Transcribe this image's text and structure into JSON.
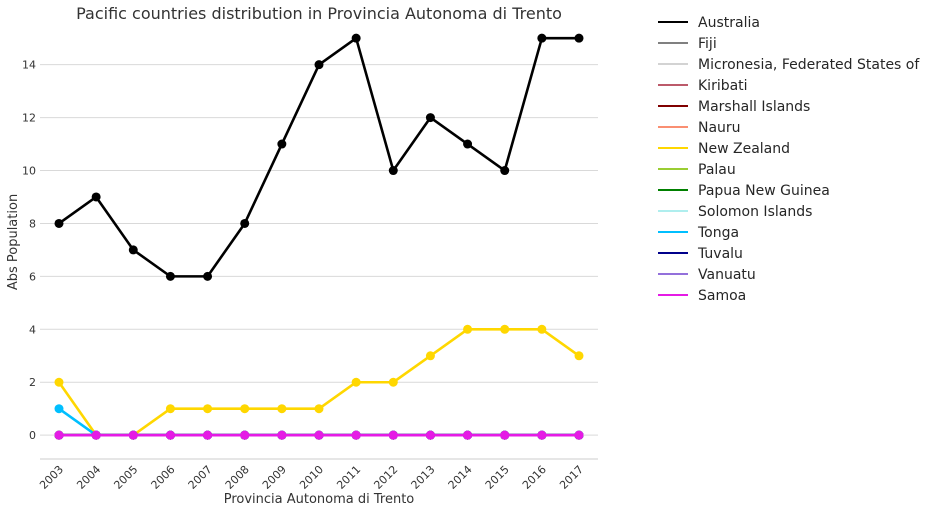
{
  "chart_data": {
    "type": "line",
    "title": "Pacific countries distribution in Provincia Autonoma di Trento",
    "xlabel": "Provincia Autonoma di Trento",
    "ylabel": "Abs Population",
    "categories": [
      "2003",
      "2004",
      "2005",
      "2006",
      "2007",
      "2008",
      "2009",
      "2010",
      "2011",
      "2012",
      "2013",
      "2014",
      "2015",
      "2016",
      "2017"
    ],
    "ylim": [
      -0.9,
      15.8
    ],
    "yticks": [
      0,
      2,
      4,
      6,
      8,
      10,
      12,
      14
    ],
    "grid": "horizontal",
    "legend_position": "outside-right",
    "series": [
      {
        "name": "Australia",
        "color": "#000000",
        "values": [
          8,
          9,
          7,
          6,
          6,
          8,
          11,
          14,
          15,
          10,
          12,
          11,
          10,
          15,
          15
        ]
      },
      {
        "name": "Fiji",
        "color": "#808080",
        "values": [
          0,
          0,
          0,
          0,
          0,
          0,
          0,
          0,
          0,
          0,
          0,
          0,
          0,
          0,
          0
        ]
      },
      {
        "name": "Micronesia, Federated States of",
        "color": "#d3d3d3",
        "values": [
          0,
          0,
          0,
          0,
          0,
          0,
          0,
          0,
          0,
          0,
          0,
          0,
          0,
          0,
          0
        ]
      },
      {
        "name": "Kiribati",
        "color": "#bc5a6a",
        "values": [
          0,
          0,
          0,
          0,
          0,
          0,
          0,
          0,
          0,
          0,
          0,
          0,
          0,
          0,
          0
        ]
      },
      {
        "name": "Marshall Islands",
        "color": "#800000",
        "values": [
          0,
          0,
          0,
          0,
          0,
          0,
          0,
          0,
          0,
          0,
          0,
          0,
          0,
          0,
          0
        ]
      },
      {
        "name": "Nauru",
        "color": "#fa8f72",
        "values": [
          0,
          0,
          0,
          0,
          0,
          0,
          0,
          0,
          0,
          0,
          0,
          0,
          0,
          0,
          0
        ]
      },
      {
        "name": "New Zealand",
        "color": "#ffd700",
        "values": [
          2,
          0,
          0,
          1,
          1,
          1,
          1,
          1,
          2,
          2,
          3,
          4,
          4,
          4,
          3
        ]
      },
      {
        "name": "Palau",
        "color": "#9acd32",
        "values": [
          0,
          0,
          0,
          0,
          0,
          0,
          0,
          0,
          0,
          0,
          0,
          0,
          0,
          0,
          0
        ]
      },
      {
        "name": "Papua New Guinea",
        "color": "#008000",
        "values": [
          0,
          0,
          0,
          0,
          0,
          0,
          0,
          0,
          0,
          0,
          0,
          0,
          0,
          0,
          0
        ]
      },
      {
        "name": "Solomon Islands",
        "color": "#afeeee",
        "values": [
          0,
          0,
          0,
          0,
          0,
          0,
          0,
          0,
          0,
          0,
          0,
          0,
          0,
          0,
          0
        ]
      },
      {
        "name": "Tonga",
        "color": "#00bfff",
        "values": [
          1,
          0,
          0,
          0,
          0,
          0,
          0,
          0,
          0,
          0,
          0,
          0,
          0,
          0,
          0
        ]
      },
      {
        "name": "Tuvalu",
        "color": "#00008b",
        "values": [
          0,
          0,
          0,
          0,
          0,
          0,
          0,
          0,
          0,
          0,
          0,
          0,
          0,
          0,
          0
        ]
      },
      {
        "name": "Vanuatu",
        "color": "#9370db",
        "values": [
          0,
          0,
          0,
          0,
          0,
          0,
          0,
          0,
          0,
          0,
          0,
          0,
          0,
          0,
          0
        ]
      },
      {
        "name": "Samoa",
        "color": "#e51be5",
        "values": [
          0,
          0,
          0,
          0,
          0,
          0,
          0,
          0,
          0,
          0,
          0,
          0,
          0,
          0,
          0
        ]
      }
    ]
  }
}
